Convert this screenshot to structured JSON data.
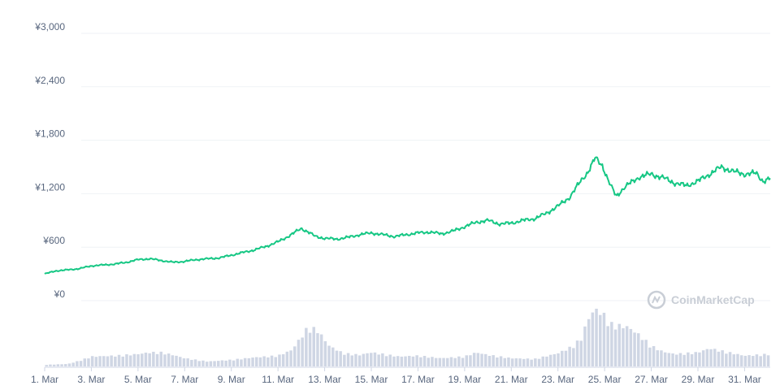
{
  "chart_data": {
    "type": "line",
    "title": "",
    "xlabel": "",
    "ylabel": "",
    "ylim": [
      0,
      3000
    ],
    "y_ticks": [
      "¥0",
      "¥600",
      "¥1,200",
      "¥1,800",
      "¥2,400",
      "¥3,000"
    ],
    "y_tick_values": [
      0,
      600,
      1200,
      1800,
      2400,
      3000
    ],
    "x_ticks": [
      "1. Mar",
      "3. Mar",
      "5. Mar",
      "7. Mar",
      "9. Mar",
      "11. Mar",
      "13. Mar",
      "15. Mar",
      "17. Mar",
      "19. Mar",
      "21. Mar",
      "23. Mar",
      "25. Mar",
      "27. Mar",
      "29. Mar",
      "31. Mar"
    ],
    "x_tick_days": [
      1,
      3,
      5,
      7,
      9,
      11,
      13,
      15,
      17,
      19,
      21,
      23,
      25,
      27,
      29,
      31
    ],
    "x_range_days": [
      1,
      32.1
    ],
    "grid": true,
    "series": [
      {
        "color": "#16c784",
        "x": [
          1,
          1.5,
          2,
          2.5,
          3,
          3.5,
          4,
          4.5,
          5,
          5.5,
          6,
          6.5,
          7,
          7.5,
          8,
          8.5,
          9,
          9.5,
          10,
          10.5,
          11,
          11.5,
          12,
          12.3,
          12.6,
          13,
          13.5,
          14,
          14.5,
          15,
          15.5,
          16,
          16.5,
          17,
          17.5,
          18,
          18.5,
          19,
          19.5,
          20,
          20.5,
          21,
          21.5,
          22,
          22.5,
          23,
          23.5,
          24,
          24.3,
          24.6,
          24.9,
          25.2,
          25.5,
          25.8,
          26,
          26.5,
          27,
          27.5,
          28,
          28.5,
          29,
          29.5,
          30,
          30.5,
          31,
          31.5,
          31.8,
          32.1
        ],
        "values": [
          300,
          335,
          345,
          360,
          390,
          400,
          410,
          430,
          460,
          470,
          450,
          430,
          440,
          460,
          470,
          480,
          510,
          540,
          570,
          610,
          660,
          730,
          810,
          770,
          720,
          700,
          690,
          710,
          740,
          760,
          740,
          720,
          740,
          760,
          770,
          750,
          780,
          830,
          880,
          900,
          860,
          870,
          900,
          920,
          980,
          1060,
          1160,
          1350,
          1450,
          1600,
          1520,
          1320,
          1170,
          1260,
          1300,
          1390,
          1420,
          1380,
          1320,
          1290,
          1340,
          1420,
          1500,
          1450,
          1420,
          1430,
          1340,
          1370
        ]
      }
    ],
    "volume": {
      "color": "#cfd6e4",
      "x": [
        1,
        2,
        2.5,
        3,
        4,
        5,
        5.5,
        6,
        6.5,
        7,
        8,
        9,
        10,
        11,
        11.6,
        12,
        12.3,
        12.7,
        13.2,
        13.8,
        14.5,
        15,
        15.5,
        16.2,
        17,
        18,
        19,
        19.5,
        20,
        21,
        22,
        23,
        23.6,
        24,
        24.3,
        24.6,
        25,
        25.2,
        25.5,
        26,
        26.5,
        27,
        27.5,
        28,
        29,
        29.5,
        30,
        31,
        32.1
      ],
      "values": [
        2,
        3,
        7,
        12,
        13,
        15,
        17,
        17,
        14,
        10,
        6,
        8,
        11,
        13,
        20,
        36,
        48,
        44,
        25,
        16,
        14,
        17,
        15,
        12,
        13,
        10,
        12,
        17,
        14,
        10,
        9,
        16,
        24,
        34,
        58,
        70,
        62,
        52,
        50,
        48,
        38,
        25,
        18,
        15,
        17,
        22,
        19,
        13,
        15
      ]
    }
  },
  "watermark": {
    "text": "CoinMarketCap",
    "icon": "coinmarketcap-logo-icon"
  }
}
